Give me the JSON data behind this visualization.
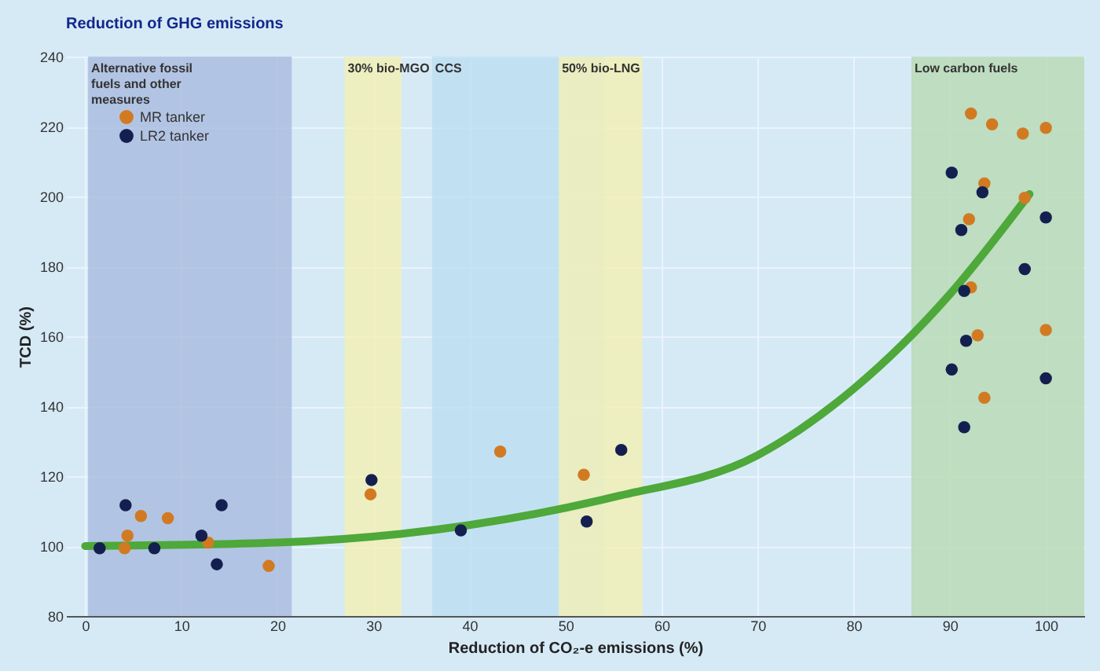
{
  "chart_data": {
    "type": "scatter",
    "title": "Reduction of GHG emissions",
    "xlabel": "Reduction of CO₂-e emissions (%)",
    "ylabel": "TCD (%)",
    "xlim": [
      -2,
      104
    ],
    "xticks": [
      0,
      10,
      20,
      30,
      40,
      50,
      60,
      70,
      80,
      90,
      100
    ],
    "ylim": [
      80,
      240
    ],
    "yticks": [
      80,
      100,
      120,
      140,
      160,
      180,
      200,
      220,
      240
    ],
    "grid": true,
    "legend": "top left",
    "marker": "circle",
    "series": [
      {
        "name": "MR tanker",
        "color": "#d27a22",
        "x": [
          5.8,
          8.6,
          4.4,
          4.1,
          12.8,
          19.1,
          29.7,
          43.2,
          51.9,
          92.2,
          94.4,
          97.6,
          100,
          93.6,
          97.8,
          92,
          92.2,
          92.9,
          100,
          93.6
        ],
        "values": [
          108.6,
          108,
          103,
          99.4,
          101,
          94.3,
          114.8,
          127,
          120.4,
          223.7,
          220.6,
          218,
          219.6,
          203.7,
          199.6,
          193.5,
          174,
          160.3,
          161.8,
          142.4
        ]
      },
      {
        "name": "LR2 tanker",
        "color": "#13204f",
        "x": [
          1.5,
          4.2,
          7.2,
          12.1,
          14.2,
          13.7,
          29.8,
          39.1,
          52.2,
          55.8,
          90.2,
          93.4,
          91.2,
          100,
          97.8,
          91.5,
          91.7,
          90.2,
          100,
          91.5
        ],
        "values": [
          99.4,
          111.7,
          99.4,
          103,
          111.7,
          94.8,
          118.9,
          104.5,
          107,
          127.5,
          206.8,
          201.2,
          190.4,
          194,
          179.2,
          173,
          158.7,
          150.5,
          148,
          134
        ]
      },
      {
        "type": "line",
        "marker": "none",
        "color": "#4ea83a",
        "x": [
          0,
          20,
          40,
          55,
          70,
          80,
          90,
          98.3
        ],
        "values": [
          100,
          101,
          106,
          114,
          126,
          145,
          172,
          200.7
        ]
      }
    ],
    "bands": [
      {
        "axis": "x",
        "from": 0.3,
        "to": 21.5,
        "color": "#a9badf",
        "label": "Alternative fossil fuels and other measures"
      },
      {
        "axis": "x",
        "from": 27,
        "to": 32.9,
        "color": "#f3f0b4",
        "label": "30% bio-MGO"
      },
      {
        "axis": "x",
        "from": 36.1,
        "to": 54,
        "color": "#bcdff2",
        "label": "CCS"
      },
      {
        "axis": "x",
        "from": 49.3,
        "to": 58,
        "color": "#f3f0b4",
        "label": "50% bio-LNG"
      },
      {
        "axis": "x",
        "from": 86,
        "to": 104,
        "color": "#b8d9b4",
        "label": "Low carbon fuels"
      }
    ]
  }
}
